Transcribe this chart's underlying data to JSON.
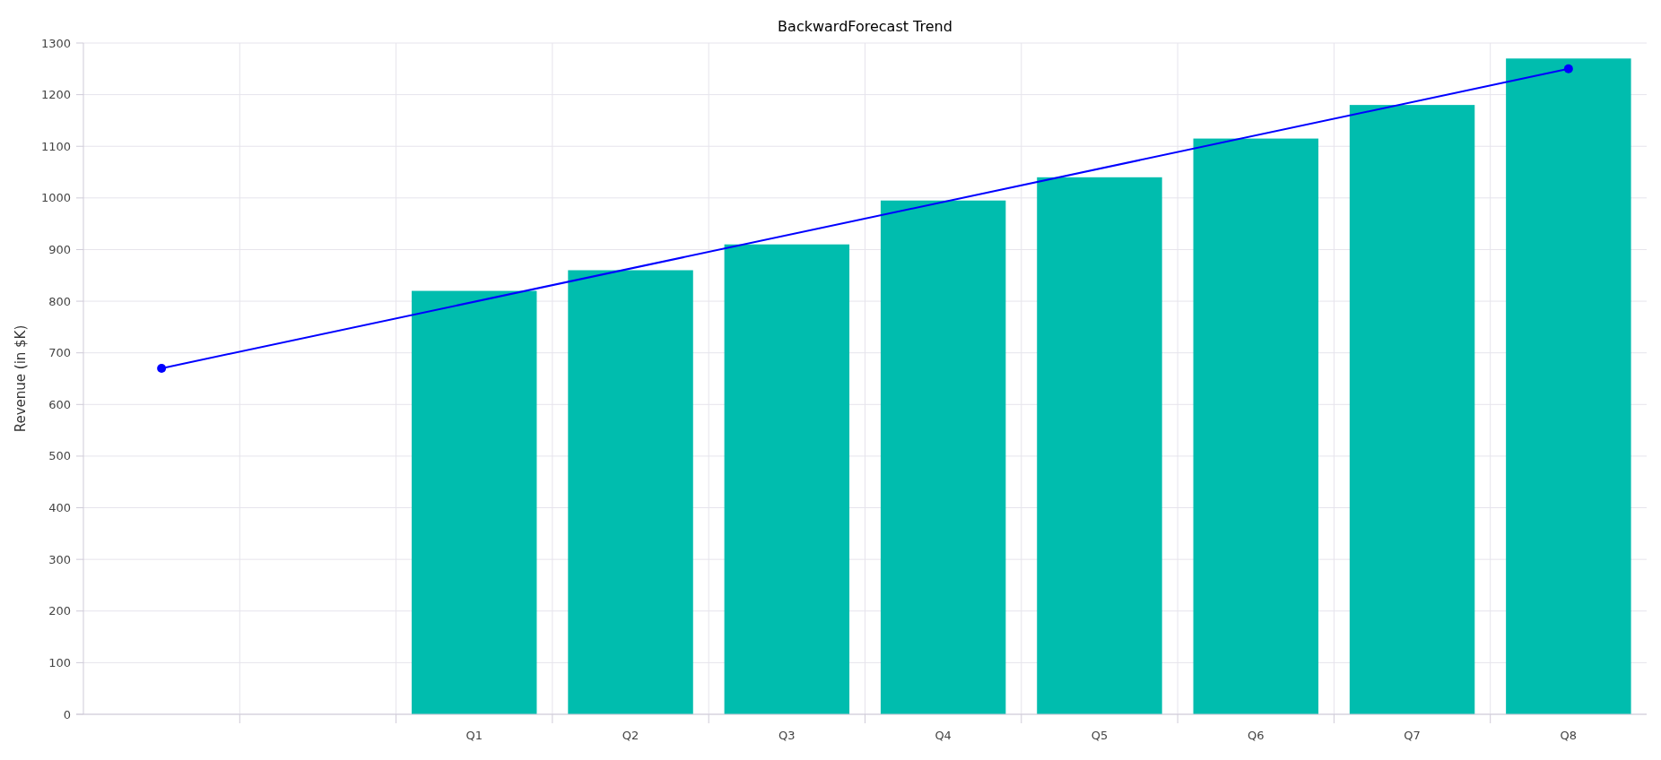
{
  "chart_data": {
    "type": "bar",
    "title": "BackwardForecast Trend",
    "ylabel": "Revenue (in $K)",
    "categories": [
      null,
      null,
      "Q1",
      "Q2",
      "Q3",
      "Q4",
      "Q5",
      "Q6",
      "Q7",
      "Q8"
    ],
    "series": [
      {
        "color": "#00bdae",
        "values": [
          null,
          null,
          820,
          860,
          910,
          995,
          1040,
          1115,
          1180,
          1270
        ]
      },
      {
        "type": "line",
        "color": "#0000ff",
        "values": [
          670,
          null,
          null,
          null,
          null,
          null,
          null,
          null,
          null,
          1250
        ],
        "marker": "circle"
      }
    ],
    "ylim": [
      0,
      1300
    ],
    "yticks": [
      0,
      100,
      200,
      300,
      400,
      500,
      600,
      700,
      800,
      900,
      1000,
      1100,
      1200,
      1300
    ],
    "grid": true
  }
}
